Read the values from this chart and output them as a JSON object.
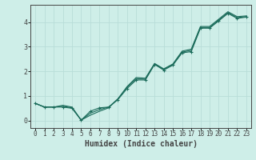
{
  "xlabel": "Humidex (Indice chaleur)",
  "x": [
    0,
    1,
    2,
    3,
    4,
    5,
    6,
    7,
    8,
    9,
    10,
    11,
    12,
    13,
    14,
    15,
    16,
    17,
    18,
    19,
    20,
    21,
    22,
    23
  ],
  "line1": [
    0.7,
    0.55,
    0.55,
    0.55,
    0.5,
    0.02,
    0.38,
    0.52,
    0.55,
    0.85,
    1.3,
    1.65,
    1.65,
    2.28,
    2.05,
    2.25,
    2.75,
    2.8,
    3.75,
    3.75,
    4.05,
    4.35,
    4.15,
    4.2
  ],
  "line2": [
    0.7,
    0.55,
    0.55,
    0.58,
    0.52,
    0.02,
    0.3,
    0.45,
    0.55,
    0.88,
    1.35,
    1.7,
    1.68,
    2.3,
    2.08,
    2.28,
    2.78,
    2.85,
    3.78,
    3.78,
    4.08,
    4.38,
    4.18,
    4.22
  ],
  "line3": [
    0.7,
    0.55,
    0.55,
    0.62,
    0.55,
    0.02,
    0.22,
    0.38,
    0.52,
    0.88,
    1.38,
    1.75,
    1.72,
    2.32,
    2.1,
    2.3,
    2.82,
    2.9,
    3.82,
    3.82,
    4.12,
    4.42,
    4.22,
    4.25
  ],
  "bg_color": "#ceeee8",
  "line_color": "#1a6b5a",
  "grid_color": "#b8ddd8",
  "axis_color": "#444444",
  "ylim": [
    -0.3,
    4.7
  ],
  "xlim": [
    -0.5,
    23.5
  ],
  "yticks": [
    0,
    1,
    2,
    3,
    4
  ],
  "xticks": [
    0,
    1,
    2,
    3,
    4,
    5,
    6,
    7,
    8,
    9,
    10,
    11,
    12,
    13,
    14,
    15,
    16,
    17,
    18,
    19,
    20,
    21,
    22,
    23
  ],
  "tick_fontsize": 5.5,
  "xlabel_fontsize": 7.0
}
